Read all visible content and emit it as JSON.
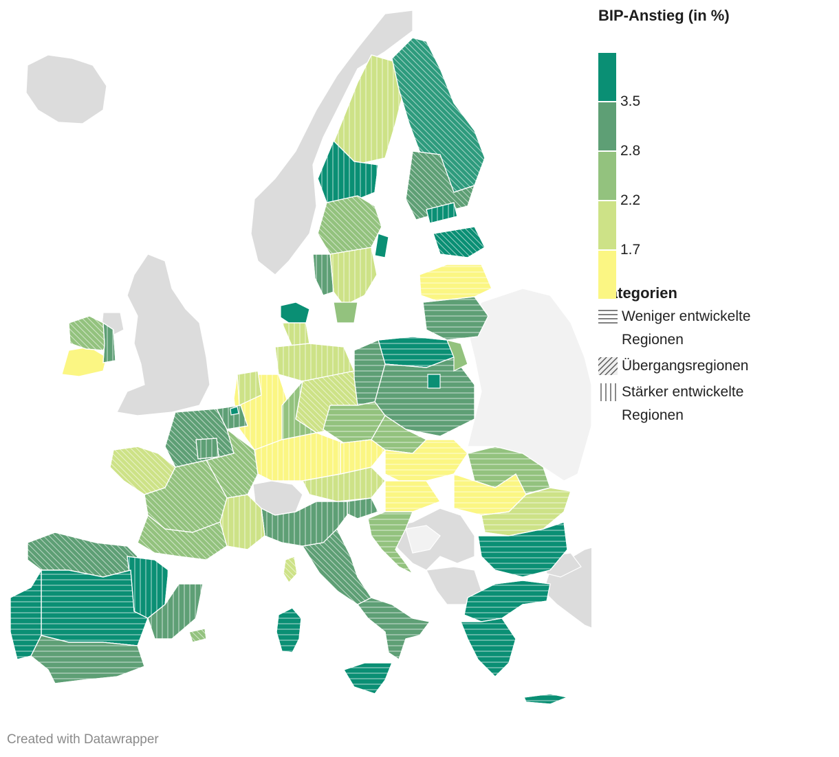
{
  "legend": {
    "title": "BIP-Anstieg (in %)",
    "scale": [
      {
        "color": "#0a8f74",
        "label": "3.5"
      },
      {
        "color": "#5e9f75",
        "label": "2.8"
      },
      {
        "color": "#93c27e",
        "label": "2.2"
      },
      {
        "color": "#cde287",
        "label": "1.7"
      },
      {
        "color": "#fbf683",
        "label": ""
      }
    ],
    "categories_title": "Kategorien",
    "categories": [
      {
        "pattern": "horizontal",
        "label": "Weniger entwickelte Regionen"
      },
      {
        "pattern": "diagonal",
        "label": "Übergangsregionen"
      },
      {
        "pattern": "vertical",
        "label": "Stärker entwickelte Regionen"
      }
    ]
  },
  "colors": {
    "non_eu": "#dcdcdc",
    "non_eu_light": "#f2f2f2",
    "border": "#ffffff"
  },
  "credit": "Created with Datawrapper"
}
